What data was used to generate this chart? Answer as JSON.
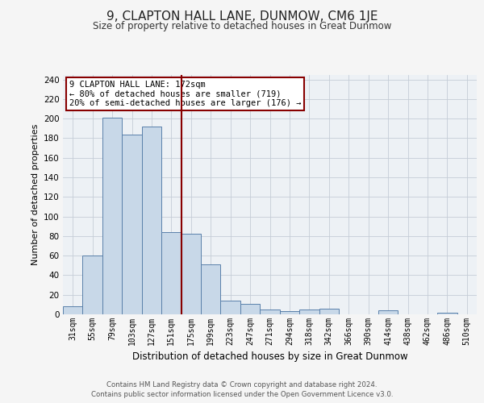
{
  "title": "9, CLAPTON HALL LANE, DUNMOW, CM6 1JE",
  "subtitle": "Size of property relative to detached houses in Great Dunmow",
  "xlabel": "Distribution of detached houses by size in Great Dunmow",
  "ylabel": "Number of detached properties",
  "footer_line1": "Contains HM Land Registry data © Crown copyright and database right 2024.",
  "footer_line2": "Contains public sector information licensed under the Open Government Licence v3.0.",
  "bar_labels": [
    "31sqm",
    "55sqm",
    "79sqm",
    "103sqm",
    "127sqm",
    "151sqm",
    "175sqm",
    "199sqm",
    "223sqm",
    "247sqm",
    "271sqm",
    "294sqm",
    "318sqm",
    "342sqm",
    "366sqm",
    "390sqm",
    "414sqm",
    "438sqm",
    "462sqm",
    "486sqm",
    "510sqm"
  ],
  "bar_values": [
    8,
    60,
    201,
    184,
    192,
    84,
    82,
    51,
    14,
    11,
    5,
    3,
    5,
    6,
    0,
    0,
    4,
    0,
    0,
    2,
    0
  ],
  "bar_color": "#c8d8e8",
  "bar_edge_color": "#5a80aa",
  "vline_x": 5.5,
  "vline_color": "#880000",
  "annotation_title": "9 CLAPTON HALL LANE: 172sqm",
  "annotation_line1": "← 80% of detached houses are smaller (719)",
  "annotation_line2": "20% of semi-detached houses are larger (176) →",
  "annotation_box_color": "#880000",
  "ylim": [
    0,
    245
  ],
  "yticks": [
    0,
    20,
    40,
    60,
    80,
    100,
    120,
    140,
    160,
    180,
    200,
    220,
    240
  ],
  "fig_bg_color": "#f5f5f5",
  "plot_bg_color": "#edf1f5"
}
